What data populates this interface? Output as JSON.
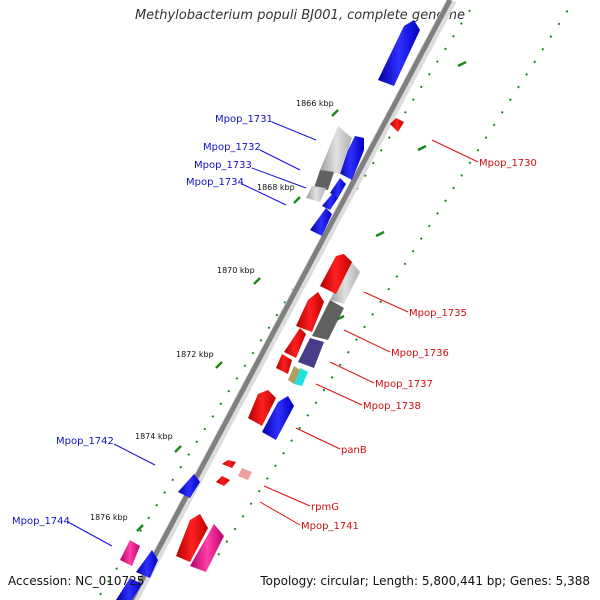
{
  "title": "Methylobacterium populi BJ001, complete genome",
  "accession": "Accession: NC_010725",
  "topology": "Topology: circular; Length: 5,800,441 bp; Genes: 5,388",
  "ticks": [
    "1866 kbp",
    "1868 kbp",
    "1870 kbp",
    "1872 kbp",
    "1874 kbp",
    "1876 kbp"
  ],
  "left_labels": [
    "Mpop_1731",
    "Mpop_1732",
    "Mpop_1733",
    "Mpop_1734",
    "Mpop_1742",
    "Mpop_1744"
  ],
  "right_labels": [
    "Mpop_1730",
    "Mpop_1735",
    "Mpop_1736",
    "Mpop_1737",
    "Mpop_1738",
    "panB",
    "rpmG",
    "Mpop_1741"
  ],
  "colors": {
    "forward": "#1010e0",
    "reverse": "#e01010",
    "backbone": "#808080",
    "tick": "#1a8a1a",
    "pink": "#e0108a"
  }
}
